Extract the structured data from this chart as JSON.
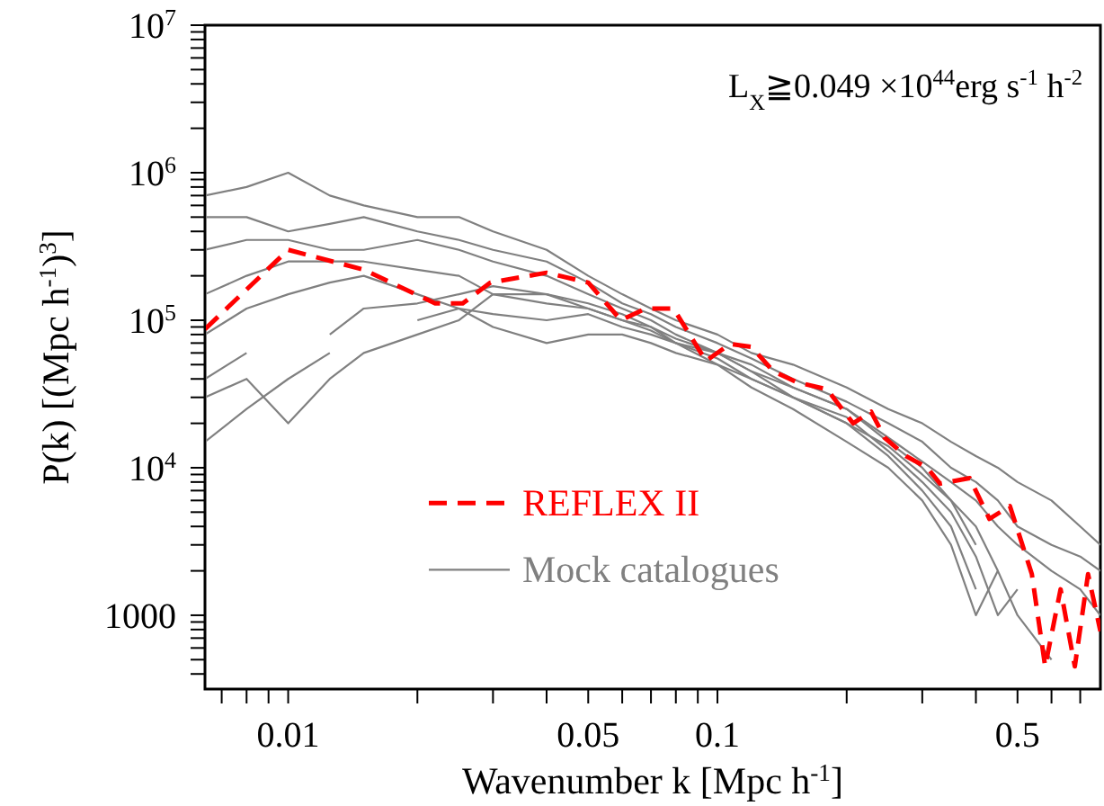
{
  "chart_data": {
    "type": "line",
    "xlabel": "Wavenumber k [Mpc h$^{-1}$]",
    "ylabel": "P(k) [(Mpc h$^{-1}$)$^{3}$]",
    "annotations": [
      "L$_{X}$≧0.049 ×10$^{44}$erg s$^{-1}$ h$^{-2}$"
    ],
    "log": "xy",
    "legend": "bottom",
    "xlim": [
      0.0064,
      0.78
    ],
    "xticks": [
      {
        "value": 0.007,
        "label": null
      },
      {
        "value": 0.008,
        "label": null
      },
      {
        "value": 0.009,
        "label": null
      },
      0.01,
      {
        "value": 0.02,
        "label": null
      },
      {
        "value": 0.03,
        "label": null
      },
      {
        "value": 0.04,
        "label": null
      },
      0.05,
      {
        "value": 0.06,
        "label": null
      },
      {
        "value": 0.07,
        "label": null
      },
      {
        "value": 0.08,
        "label": null
      },
      {
        "value": 0.09,
        "label": null
      },
      0.1,
      {
        "value": 0.2,
        "label": null
      },
      {
        "value": 0.3,
        "label": null
      },
      {
        "value": 0.4,
        "label": null
      },
      0.5,
      {
        "value": 0.6,
        "label": null
      },
      {
        "value": 0.7,
        "label": null
      }
    ],
    "ylim": [
      316,
      10000000
    ],
    "yticks": [
      {
        "value": 400,
        "label": null
      },
      {
        "value": 500,
        "label": null
      },
      {
        "value": 600,
        "label": null
      },
      {
        "value": 700,
        "label": null
      },
      {
        "value": 800,
        "label": null
      },
      {
        "value": 900,
        "label": null
      },
      1000,
      {
        "value": 2000,
        "label": null
      },
      {
        "value": 3000,
        "label": null
      },
      {
        "value": 4000,
        "label": null
      },
      {
        "value": 5000,
        "label": null
      },
      {
        "value": 6000,
        "label": null
      },
      {
        "value": 7000,
        "label": null
      },
      {
        "value": 8000,
        "label": null
      },
      {
        "value": 9000,
        "label": null
      },
      {
        "value": 10000,
        "label": "10$^{4}$"
      },
      {
        "value": 20000,
        "label": null
      },
      {
        "value": 30000,
        "label": null
      },
      {
        "value": 40000,
        "label": null
      },
      {
        "value": 50000,
        "label": null
      },
      {
        "value": 60000,
        "label": null
      },
      {
        "value": 70000,
        "label": null
      },
      {
        "value": 80000,
        "label": null
      },
      {
        "value": 90000,
        "label": null
      },
      {
        "value": 100000,
        "label": "10$^{5}$"
      },
      {
        "value": 200000,
        "label": null
      },
      {
        "value": 300000,
        "label": null
      },
      {
        "value": 400000,
        "label": null
      },
      {
        "value": 500000,
        "label": null
      },
      {
        "value": 600000,
        "label": null
      },
      {
        "value": 700000,
        "label": null
      },
      {
        "value": 800000,
        "label": null
      },
      {
        "value": 900000,
        "label": null
      },
      {
        "value": 1000000,
        "label": "10$^{6}$"
      },
      {
        "value": 2000000,
        "label": null
      },
      {
        "value": 3000000,
        "label": null
      },
      {
        "value": 4000000,
        "label": null
      },
      {
        "value": 5000000,
        "label": null
      },
      {
        "value": 6000000,
        "label": null
      },
      {
        "value": 7000000,
        "label": null
      },
      {
        "value": 8000000,
        "label": null
      },
      {
        "value": 9000000,
        "label": null
      },
      {
        "value": 10000000,
        "label": "10$^{7}$"
      }
    ],
    "x": [
      0.0064,
      0.008,
      0.01,
      0.0125,
      0.015,
      0.02,
      0.025,
      0.03,
      0.04,
      0.05,
      0.06,
      0.07,
      0.08,
      0.1,
      0.12,
      0.15,
      0.2,
      0.25,
      0.3,
      0.35,
      0.4,
      0.45,
      0.5,
      0.6,
      0.7,
      0.78
    ],
    "series": [
      {
        "name": "Mock catalogues",
        "color": "#808080",
        "line_style": "solid",
        "values": [
          700000,
          800000,
          1000000,
          700000,
          600000,
          500000,
          500000,
          400000,
          300000,
          200000,
          150000,
          120000,
          100000,
          80000,
          60000,
          50000,
          35000,
          25000,
          20000,
          15000,
          12000,
          10000,
          8000,
          6000,
          4000,
          3000
        ]
      },
      {
        "color": "#808080",
        "line_style": "solid",
        "values": [
          500000,
          500000,
          400000,
          450000,
          500000,
          400000,
          350000,
          300000,
          250000,
          180000,
          130000,
          110000,
          90000,
          70000,
          55000,
          40000,
          28000,
          20000,
          15000,
          10000,
          8000,
          6000,
          4000,
          3000,
          2500,
          2000
        ]
      },
      {
        "color": "#808080",
        "line_style": "solid",
        "values": [
          300000,
          350000,
          350000,
          300000,
          300000,
          350000,
          300000,
          250000,
          200000,
          150000,
          120000,
          100000,
          80000,
          60000,
          50000,
          35000,
          25000,
          16000,
          11000,
          8000,
          6000,
          4000,
          3000,
          2000,
          1500,
          1000
        ]
      },
      {
        "color": "#808080",
        "line_style": "solid",
        "values": [
          150000,
          200000,
          250000,
          250000,
          250000,
          220000,
          200000,
          150000,
          150000,
          130000,
          110000,
          90000,
          70000,
          60000,
          45000,
          30000,
          20000,
          14000,
          9000,
          6000,
          4000,
          2000,
          1000,
          500,
          null,
          null
        ]
      },
      {
        "color": "#808080",
        "line_style": "solid",
        "values": [
          80000,
          120000,
          150000,
          180000,
          200000,
          150000,
          120000,
          110000,
          100000,
          110000,
          90000,
          80000,
          70000,
          55000,
          40000,
          30000,
          20000,
          12000,
          7000,
          4000,
          1500,
          null,
          null,
          null,
          null,
          null
        ]
      },
      {
        "color": "#808080",
        "line_style": "solid",
        "values": [
          40000,
          60000,
          null,
          80000,
          120000,
          130000,
          150000,
          170000,
          150000,
          120000,
          100000,
          90000,
          75000,
          60000,
          45000,
          35000,
          25000,
          15000,
          10000,
          6000,
          3000,
          null,
          null,
          null,
          null,
          null
        ]
      },
      {
        "color": "#808080",
        "line_style": "solid",
        "values": [
          15000,
          25000,
          40000,
          60000,
          null,
          100000,
          120000,
          90000,
          70000,
          80000,
          80000,
          70000,
          60000,
          50000,
          35000,
          25000,
          15000,
          10000,
          6000,
          3000,
          1000,
          2000,
          null,
          null,
          null,
          null
        ]
      },
      {
        "color": "#808080",
        "line_style": "solid",
        "values": [
          30000,
          40000,
          20000,
          40000,
          60000,
          80000,
          100000,
          150000,
          130000,
          120000,
          100000,
          85000,
          70000,
          50000,
          40000,
          30000,
          22000,
          13000,
          8000,
          5000,
          2500,
          1000,
          1500,
          null,
          null,
          null
        ]
      },
      {
        "name": "REFLEX II",
        "color": "#ff0000",
        "line_style": "dashed",
        "x": [
          0.0064,
          0.01,
          0.015,
          0.022,
          0.0255,
          0.0296,
          0.04,
          0.05,
          0.0596,
          0.068,
          0.079,
          0.094,
          0.107,
          0.12,
          0.135,
          0.153,
          0.18,
          0.207,
          0.228,
          0.245,
          0.275,
          0.308,
          0.33,
          0.387,
          0.43,
          0.48,
          0.54,
          0.58,
          0.63,
          0.68,
          0.73,
          0.78
        ],
        "values": [
          87000,
          300000,
          220000,
          130000,
          130000,
          180000,
          210000,
          180000,
          100000,
          120000,
          120000,
          53000,
          69000,
          66000,
          45000,
          38000,
          34000,
          20000,
          24000,
          16000,
          12000,
          10000,
          7800,
          8500,
          4500,
          5500,
          1900,
          450,
          1500,
          450,
          1900,
          780
        ]
      }
    ]
  }
}
